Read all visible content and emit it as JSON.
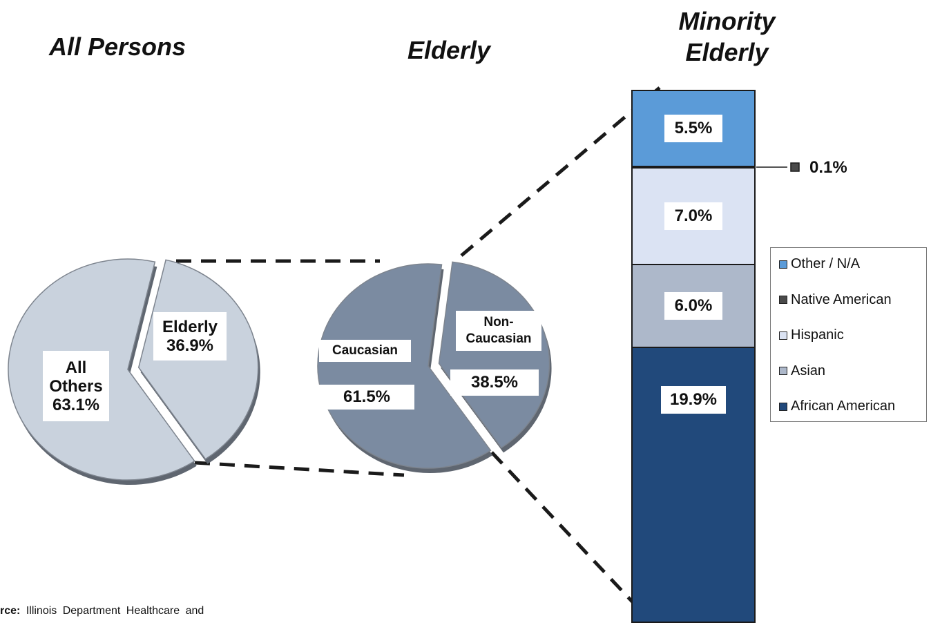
{
  "chart_data": [
    {
      "type": "pie",
      "title": "All Persons",
      "categories": [
        "All Others",
        "Elderly"
      ],
      "values": [
        63.1,
        36.9
      ],
      "value_labels": [
        "63.1%",
        "36.9%"
      ],
      "colors": [
        "#c9d2dd",
        "#c9d2dd"
      ]
    },
    {
      "type": "pie",
      "title": "Elderly",
      "categories": [
        "Caucasian",
        "Non-Caucasian"
      ],
      "values": [
        61.5,
        38.5
      ],
      "value_labels": [
        "61.5%",
        "38.5%"
      ],
      "colors": [
        "#7b8ba1",
        "#7b8ba1"
      ]
    },
    {
      "type": "bar",
      "stacked": true,
      "title": "Minority Elderly",
      "legend": "right",
      "series": [
        {
          "name": "African American",
          "color": "#21497b",
          "values": [
            19.9
          ],
          "value_labels": [
            "19.9%"
          ]
        },
        {
          "name": "Asian",
          "color": "#adb8ca",
          "values": [
            6.0
          ],
          "value_labels": [
            "6.0%"
          ]
        },
        {
          "name": "Hispanic",
          "color": "#dbe3f3",
          "values": [
            7.0
          ],
          "value_labels": [
            "7.0%"
          ]
        },
        {
          "name": "Native American",
          "color": "#4a4a4a",
          "values": [
            0.1
          ],
          "value_labels": [
            "0.1%"
          ]
        },
        {
          "name": "Other / N/A",
          "color": "#5b9bd8",
          "values": [
            5.5
          ],
          "value_labels": [
            "5.5%"
          ]
        }
      ]
    }
  ],
  "source": {
    "label": "rce:",
    "text": "Illinois Department Healthcare and"
  }
}
